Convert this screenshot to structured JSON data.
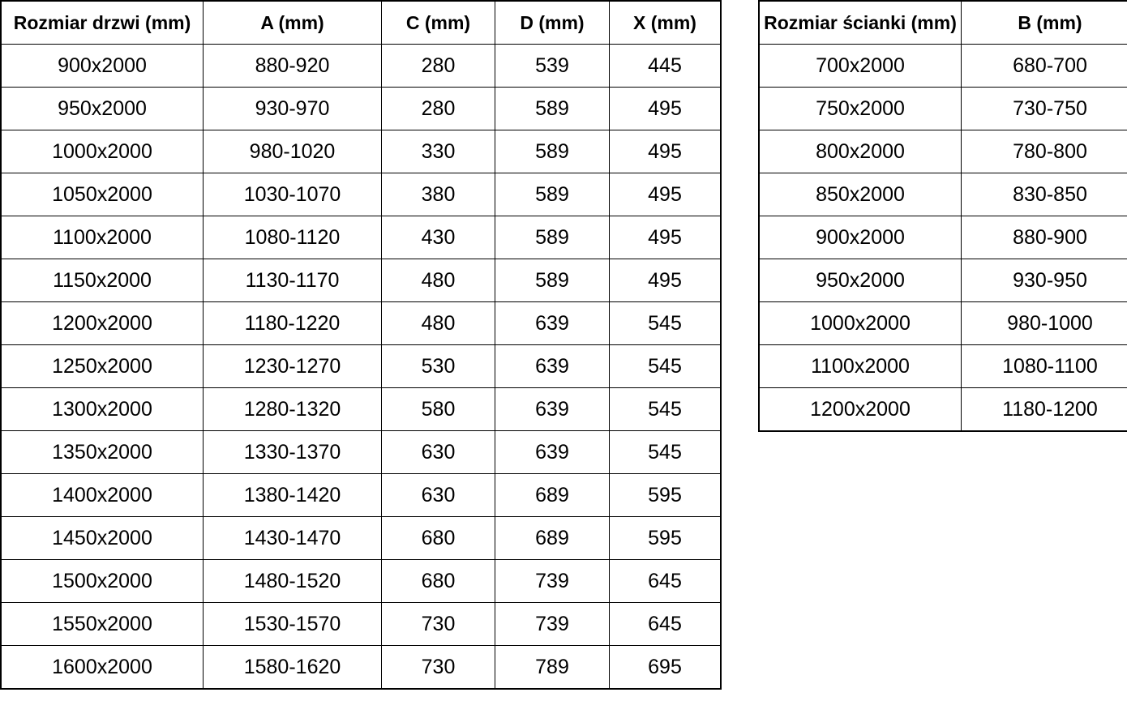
{
  "page": {
    "background_color": "#ffffff",
    "text_color": "#000000",
    "border_color": "#000000"
  },
  "tables": [
    {
      "name": "door-sizes-table",
      "headers": [
        "Rozmiar drzwi (mm)",
        "A (mm)",
        "C (mm)",
        "D (mm)",
        "X (mm)"
      ],
      "rows": [
        [
          "900x2000",
          "880-920",
          "280",
          "539",
          "445"
        ],
        [
          "950x2000",
          "930-970",
          "280",
          "589",
          "495"
        ],
        [
          "1000x2000",
          "980-1020",
          "330",
          "589",
          "495"
        ],
        [
          "1050x2000",
          "1030-1070",
          "380",
          "589",
          "495"
        ],
        [
          "1100x2000",
          "1080-1120",
          "430",
          "589",
          "495"
        ],
        [
          "1150x2000",
          "1130-1170",
          "480",
          "589",
          "495"
        ],
        [
          "1200x2000",
          "1180-1220",
          "480",
          "639",
          "545"
        ],
        [
          "1250x2000",
          "1230-1270",
          "530",
          "639",
          "545"
        ],
        [
          "1300x2000",
          "1280-1320",
          "580",
          "639",
          "545"
        ],
        [
          "1350x2000",
          "1330-1370",
          "630",
          "639",
          "545"
        ],
        [
          "1400x2000",
          "1380-1420",
          "630",
          "689",
          "595"
        ],
        [
          "1450x2000",
          "1430-1470",
          "680",
          "689",
          "595"
        ],
        [
          "1500x2000",
          "1480-1520",
          "680",
          "739",
          "645"
        ],
        [
          "1550x2000",
          "1530-1570",
          "730",
          "739",
          "645"
        ],
        [
          "1600x2000",
          "1580-1620",
          "730",
          "789",
          "695"
        ]
      ]
    },
    {
      "name": "wall-sizes-table",
      "headers": [
        "Rozmiar ścianki (mm)",
        "B (mm)"
      ],
      "rows": [
        [
          "700x2000",
          "680-700"
        ],
        [
          "750x2000",
          "730-750"
        ],
        [
          "800x2000",
          "780-800"
        ],
        [
          "850x2000",
          "830-850"
        ],
        [
          "900x2000",
          "880-900"
        ],
        [
          "950x2000",
          "930-950"
        ],
        [
          "1000x2000",
          "980-1000"
        ],
        [
          "1100x2000",
          "1080-1100"
        ],
        [
          "1200x2000",
          "1180-1200"
        ]
      ]
    }
  ]
}
